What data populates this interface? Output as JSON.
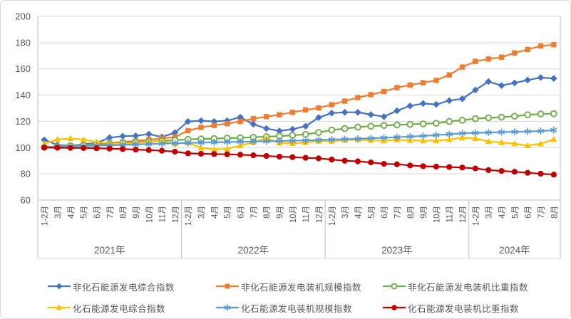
{
  "chart_data": {
    "type": "line",
    "title": "",
    "y_axis": {
      "min": 60,
      "max": 200,
      "step": 20,
      "ticks": [
        200,
        180,
        160,
        140,
        120,
        100,
        80,
        60
      ]
    },
    "x_axis": {
      "years": [
        {
          "label": "2021年",
          "months": [
            "1-2月",
            "3月",
            "4月",
            "5月",
            "6月",
            "7月",
            "8月",
            "9月",
            "10月",
            "11月",
            "12月"
          ]
        },
        {
          "label": "2022年",
          "months": [
            "1-2月",
            "3月",
            "4月",
            "5月",
            "6月",
            "7月",
            "8月",
            "9月",
            "10月",
            "11月",
            "12月"
          ]
        },
        {
          "label": "2023年",
          "months": [
            "1-2月",
            "3月",
            "4月",
            "5月",
            "6月",
            "7月",
            "8月",
            "9月",
            "10月",
            "11月",
            "12月"
          ]
        },
        {
          "label": "2024年",
          "months": [
            "1-2月",
            "3月",
            "4月",
            "5月",
            "6月",
            "7月",
            "8月"
          ]
        }
      ]
    },
    "series": [
      {
        "name": "非化石能源发电综合指数",
        "color": "#4472C4",
        "marker": "diamond",
        "values": [
          105.9,
          102.0,
          101.5,
          102.5,
          103.6,
          107.6,
          108.7,
          109.0,
          110.3,
          108.1,
          111.4,
          119.9,
          120.5,
          119.9,
          120.5,
          123.2,
          117.8,
          114.5,
          112.7,
          114.0,
          116.3,
          122.9,
          126.3,
          126.9,
          126.9,
          125.1,
          123.6,
          128.1,
          131.8,
          133.6,
          132.9,
          135.8,
          137.2,
          143.9,
          150.3,
          147.3,
          149.3,
          151.5,
          153.4,
          152.7
        ]
      },
      {
        "name": "非化石能源发电装机规模指数",
        "color": "#ED7D31",
        "marker": "square",
        "values": [
          100.4,
          100.9,
          101.4,
          102.0,
          102.7,
          103.5,
          104.3,
          105.1,
          106.0,
          107.0,
          108.0,
          112.9,
          115.4,
          116.9,
          118.2,
          119.9,
          122.0,
          123.6,
          125.0,
          126.9,
          128.7,
          130.2,
          132.7,
          135.4,
          138.1,
          140.3,
          142.7,
          145.7,
          147.6,
          149.4,
          151.2,
          155.4,
          161.4,
          165.7,
          167.5,
          168.9,
          172.1,
          174.8,
          177.4,
          178.4
        ]
      },
      {
        "name": "非化石能源发电装机比重指数",
        "color": "#70AD47",
        "marker": "circle-open",
        "values": [
          100.3,
          100.8,
          101.3,
          101.9,
          102.5,
          103.1,
          103.6,
          104.1,
          104.6,
          105.1,
          105.6,
          106.3,
          106.6,
          106.9,
          107.2,
          107.5,
          107.9,
          108.3,
          108.8,
          109.4,
          110.1,
          111.5,
          113.4,
          114.5,
          115.6,
          116.3,
          116.9,
          117.3,
          117.7,
          118.1,
          118.5,
          119.9,
          120.9,
          122.1,
          122.7,
          123.2,
          123.9,
          125.0,
          125.6,
          125.8
        ]
      },
      {
        "name": "化石能源发电综合指数",
        "color": "#FFC000",
        "marker": "triangle",
        "values": [
          102.9,
          106.3,
          106.9,
          106.1,
          104.3,
          103.3,
          103.0,
          103.6,
          104.3,
          104.8,
          102.9,
          103.7,
          99.9,
          98.6,
          99.0,
          101.5,
          104.0,
          107.1,
          103.5,
          103.2,
          103.9,
          104.9,
          104.9,
          105.6,
          106.0,
          105.6,
          105.2,
          106.0,
          105.5,
          105.3,
          105.3,
          106.1,
          107.5,
          107.0,
          104.7,
          103.9,
          103.0,
          101.5,
          103.0,
          106.2
        ]
      },
      {
        "name": "化石能源发电装机规模指数",
        "color": "#5B9BD5",
        "marker": "asterisk",
        "values": [
          100.3,
          100.6,
          100.9,
          101.2,
          101.5,
          101.8,
          102.1,
          102.4,
          102.7,
          103.0,
          103.3,
          103.6,
          103.8,
          104.0,
          104.2,
          104.4,
          104.6,
          104.8,
          105.0,
          105.2,
          105.5,
          105.8,
          106.1,
          106.4,
          106.7,
          107.1,
          107.5,
          107.9,
          108.4,
          108.9,
          109.5,
          110.2,
          110.9,
          111.2,
          111.5,
          111.8,
          112.0,
          112.3,
          112.6,
          113.3
        ]
      },
      {
        "name": "化石能源发电装机比重指数",
        "color": "#C00000",
        "marker": "circle",
        "values": [
          100.0,
          99.9,
          99.8,
          99.7,
          99.5,
          99.2,
          98.9,
          98.5,
          98.1,
          97.6,
          96.9,
          95.6,
          95.3,
          95.1,
          94.9,
          94.6,
          94.1,
          93.6,
          93.1,
          92.7,
          92.2,
          91.8,
          90.9,
          90.0,
          89.5,
          88.7,
          87.6,
          87.3,
          86.4,
          85.8,
          85.5,
          85.2,
          84.8,
          84.1,
          82.9,
          82.2,
          81.6,
          80.8,
          80.1,
          79.4
        ]
      }
    ],
    "legend_position": "bottom",
    "grid": "horizontal",
    "axis_text_color": "#595959"
  }
}
